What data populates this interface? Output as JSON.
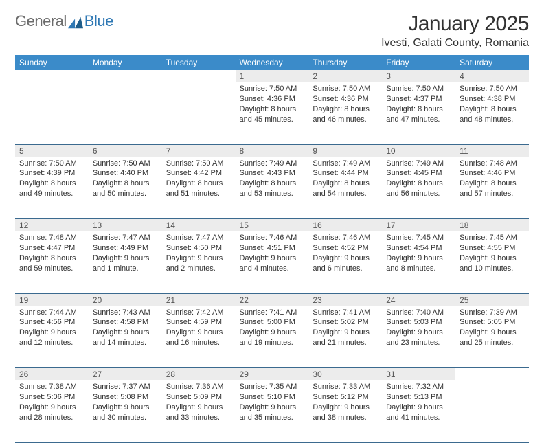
{
  "brand": {
    "general": "General",
    "blue": "Blue"
  },
  "title": "January 2025",
  "location": "Ivesti, Galati County, Romania",
  "colors": {
    "header_bg": "#3b8bc9",
    "header_text": "#ffffff",
    "daynum_bg": "#ececec",
    "rule": "#3b6a8f",
    "text": "#333333",
    "logo_gray": "#6b6b6b",
    "logo_blue": "#2f78b4"
  },
  "weekdays": [
    "Sunday",
    "Monday",
    "Tuesday",
    "Wednesday",
    "Thursday",
    "Friday",
    "Saturday"
  ],
  "weeks": [
    [
      {
        "n": "",
        "lines": []
      },
      {
        "n": "",
        "lines": []
      },
      {
        "n": "",
        "lines": []
      },
      {
        "n": "1",
        "lines": [
          "Sunrise: 7:50 AM",
          "Sunset: 4:36 PM",
          "Daylight: 8 hours",
          "and 45 minutes."
        ]
      },
      {
        "n": "2",
        "lines": [
          "Sunrise: 7:50 AM",
          "Sunset: 4:36 PM",
          "Daylight: 8 hours",
          "and 46 minutes."
        ]
      },
      {
        "n": "3",
        "lines": [
          "Sunrise: 7:50 AM",
          "Sunset: 4:37 PM",
          "Daylight: 8 hours",
          "and 47 minutes."
        ]
      },
      {
        "n": "4",
        "lines": [
          "Sunrise: 7:50 AM",
          "Sunset: 4:38 PM",
          "Daylight: 8 hours",
          "and 48 minutes."
        ]
      }
    ],
    [
      {
        "n": "5",
        "lines": [
          "Sunrise: 7:50 AM",
          "Sunset: 4:39 PM",
          "Daylight: 8 hours",
          "and 49 minutes."
        ]
      },
      {
        "n": "6",
        "lines": [
          "Sunrise: 7:50 AM",
          "Sunset: 4:40 PM",
          "Daylight: 8 hours",
          "and 50 minutes."
        ]
      },
      {
        "n": "7",
        "lines": [
          "Sunrise: 7:50 AM",
          "Sunset: 4:42 PM",
          "Daylight: 8 hours",
          "and 51 minutes."
        ]
      },
      {
        "n": "8",
        "lines": [
          "Sunrise: 7:49 AM",
          "Sunset: 4:43 PM",
          "Daylight: 8 hours",
          "and 53 minutes."
        ]
      },
      {
        "n": "9",
        "lines": [
          "Sunrise: 7:49 AM",
          "Sunset: 4:44 PM",
          "Daylight: 8 hours",
          "and 54 minutes."
        ]
      },
      {
        "n": "10",
        "lines": [
          "Sunrise: 7:49 AM",
          "Sunset: 4:45 PM",
          "Daylight: 8 hours",
          "and 56 minutes."
        ]
      },
      {
        "n": "11",
        "lines": [
          "Sunrise: 7:48 AM",
          "Sunset: 4:46 PM",
          "Daylight: 8 hours",
          "and 57 minutes."
        ]
      }
    ],
    [
      {
        "n": "12",
        "lines": [
          "Sunrise: 7:48 AM",
          "Sunset: 4:47 PM",
          "Daylight: 8 hours",
          "and 59 minutes."
        ]
      },
      {
        "n": "13",
        "lines": [
          "Sunrise: 7:47 AM",
          "Sunset: 4:49 PM",
          "Daylight: 9 hours",
          "and 1 minute."
        ]
      },
      {
        "n": "14",
        "lines": [
          "Sunrise: 7:47 AM",
          "Sunset: 4:50 PM",
          "Daylight: 9 hours",
          "and 2 minutes."
        ]
      },
      {
        "n": "15",
        "lines": [
          "Sunrise: 7:46 AM",
          "Sunset: 4:51 PM",
          "Daylight: 9 hours",
          "and 4 minutes."
        ]
      },
      {
        "n": "16",
        "lines": [
          "Sunrise: 7:46 AM",
          "Sunset: 4:52 PM",
          "Daylight: 9 hours",
          "and 6 minutes."
        ]
      },
      {
        "n": "17",
        "lines": [
          "Sunrise: 7:45 AM",
          "Sunset: 4:54 PM",
          "Daylight: 9 hours",
          "and 8 minutes."
        ]
      },
      {
        "n": "18",
        "lines": [
          "Sunrise: 7:45 AM",
          "Sunset: 4:55 PM",
          "Daylight: 9 hours",
          "and 10 minutes."
        ]
      }
    ],
    [
      {
        "n": "19",
        "lines": [
          "Sunrise: 7:44 AM",
          "Sunset: 4:56 PM",
          "Daylight: 9 hours",
          "and 12 minutes."
        ]
      },
      {
        "n": "20",
        "lines": [
          "Sunrise: 7:43 AM",
          "Sunset: 4:58 PM",
          "Daylight: 9 hours",
          "and 14 minutes."
        ]
      },
      {
        "n": "21",
        "lines": [
          "Sunrise: 7:42 AM",
          "Sunset: 4:59 PM",
          "Daylight: 9 hours",
          "and 16 minutes."
        ]
      },
      {
        "n": "22",
        "lines": [
          "Sunrise: 7:41 AM",
          "Sunset: 5:00 PM",
          "Daylight: 9 hours",
          "and 19 minutes."
        ]
      },
      {
        "n": "23",
        "lines": [
          "Sunrise: 7:41 AM",
          "Sunset: 5:02 PM",
          "Daylight: 9 hours",
          "and 21 minutes."
        ]
      },
      {
        "n": "24",
        "lines": [
          "Sunrise: 7:40 AM",
          "Sunset: 5:03 PM",
          "Daylight: 9 hours",
          "and 23 minutes."
        ]
      },
      {
        "n": "25",
        "lines": [
          "Sunrise: 7:39 AM",
          "Sunset: 5:05 PM",
          "Daylight: 9 hours",
          "and 25 minutes."
        ]
      }
    ],
    [
      {
        "n": "26",
        "lines": [
          "Sunrise: 7:38 AM",
          "Sunset: 5:06 PM",
          "Daylight: 9 hours",
          "and 28 minutes."
        ]
      },
      {
        "n": "27",
        "lines": [
          "Sunrise: 7:37 AM",
          "Sunset: 5:08 PM",
          "Daylight: 9 hours",
          "and 30 minutes."
        ]
      },
      {
        "n": "28",
        "lines": [
          "Sunrise: 7:36 AM",
          "Sunset: 5:09 PM",
          "Daylight: 9 hours",
          "and 33 minutes."
        ]
      },
      {
        "n": "29",
        "lines": [
          "Sunrise: 7:35 AM",
          "Sunset: 5:10 PM",
          "Daylight: 9 hours",
          "and 35 minutes."
        ]
      },
      {
        "n": "30",
        "lines": [
          "Sunrise: 7:33 AM",
          "Sunset: 5:12 PM",
          "Daylight: 9 hours",
          "and 38 minutes."
        ]
      },
      {
        "n": "31",
        "lines": [
          "Sunrise: 7:32 AM",
          "Sunset: 5:13 PM",
          "Daylight: 9 hours",
          "and 41 minutes."
        ]
      },
      {
        "n": "",
        "lines": []
      }
    ]
  ]
}
